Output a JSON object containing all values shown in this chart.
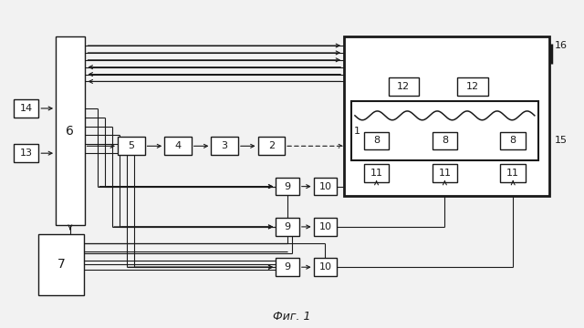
{
  "bg_color": "#f2f2f2",
  "line_color": "#1a1a1a",
  "box_color": "#ffffff",
  "fig_caption": "Фиг. 1"
}
